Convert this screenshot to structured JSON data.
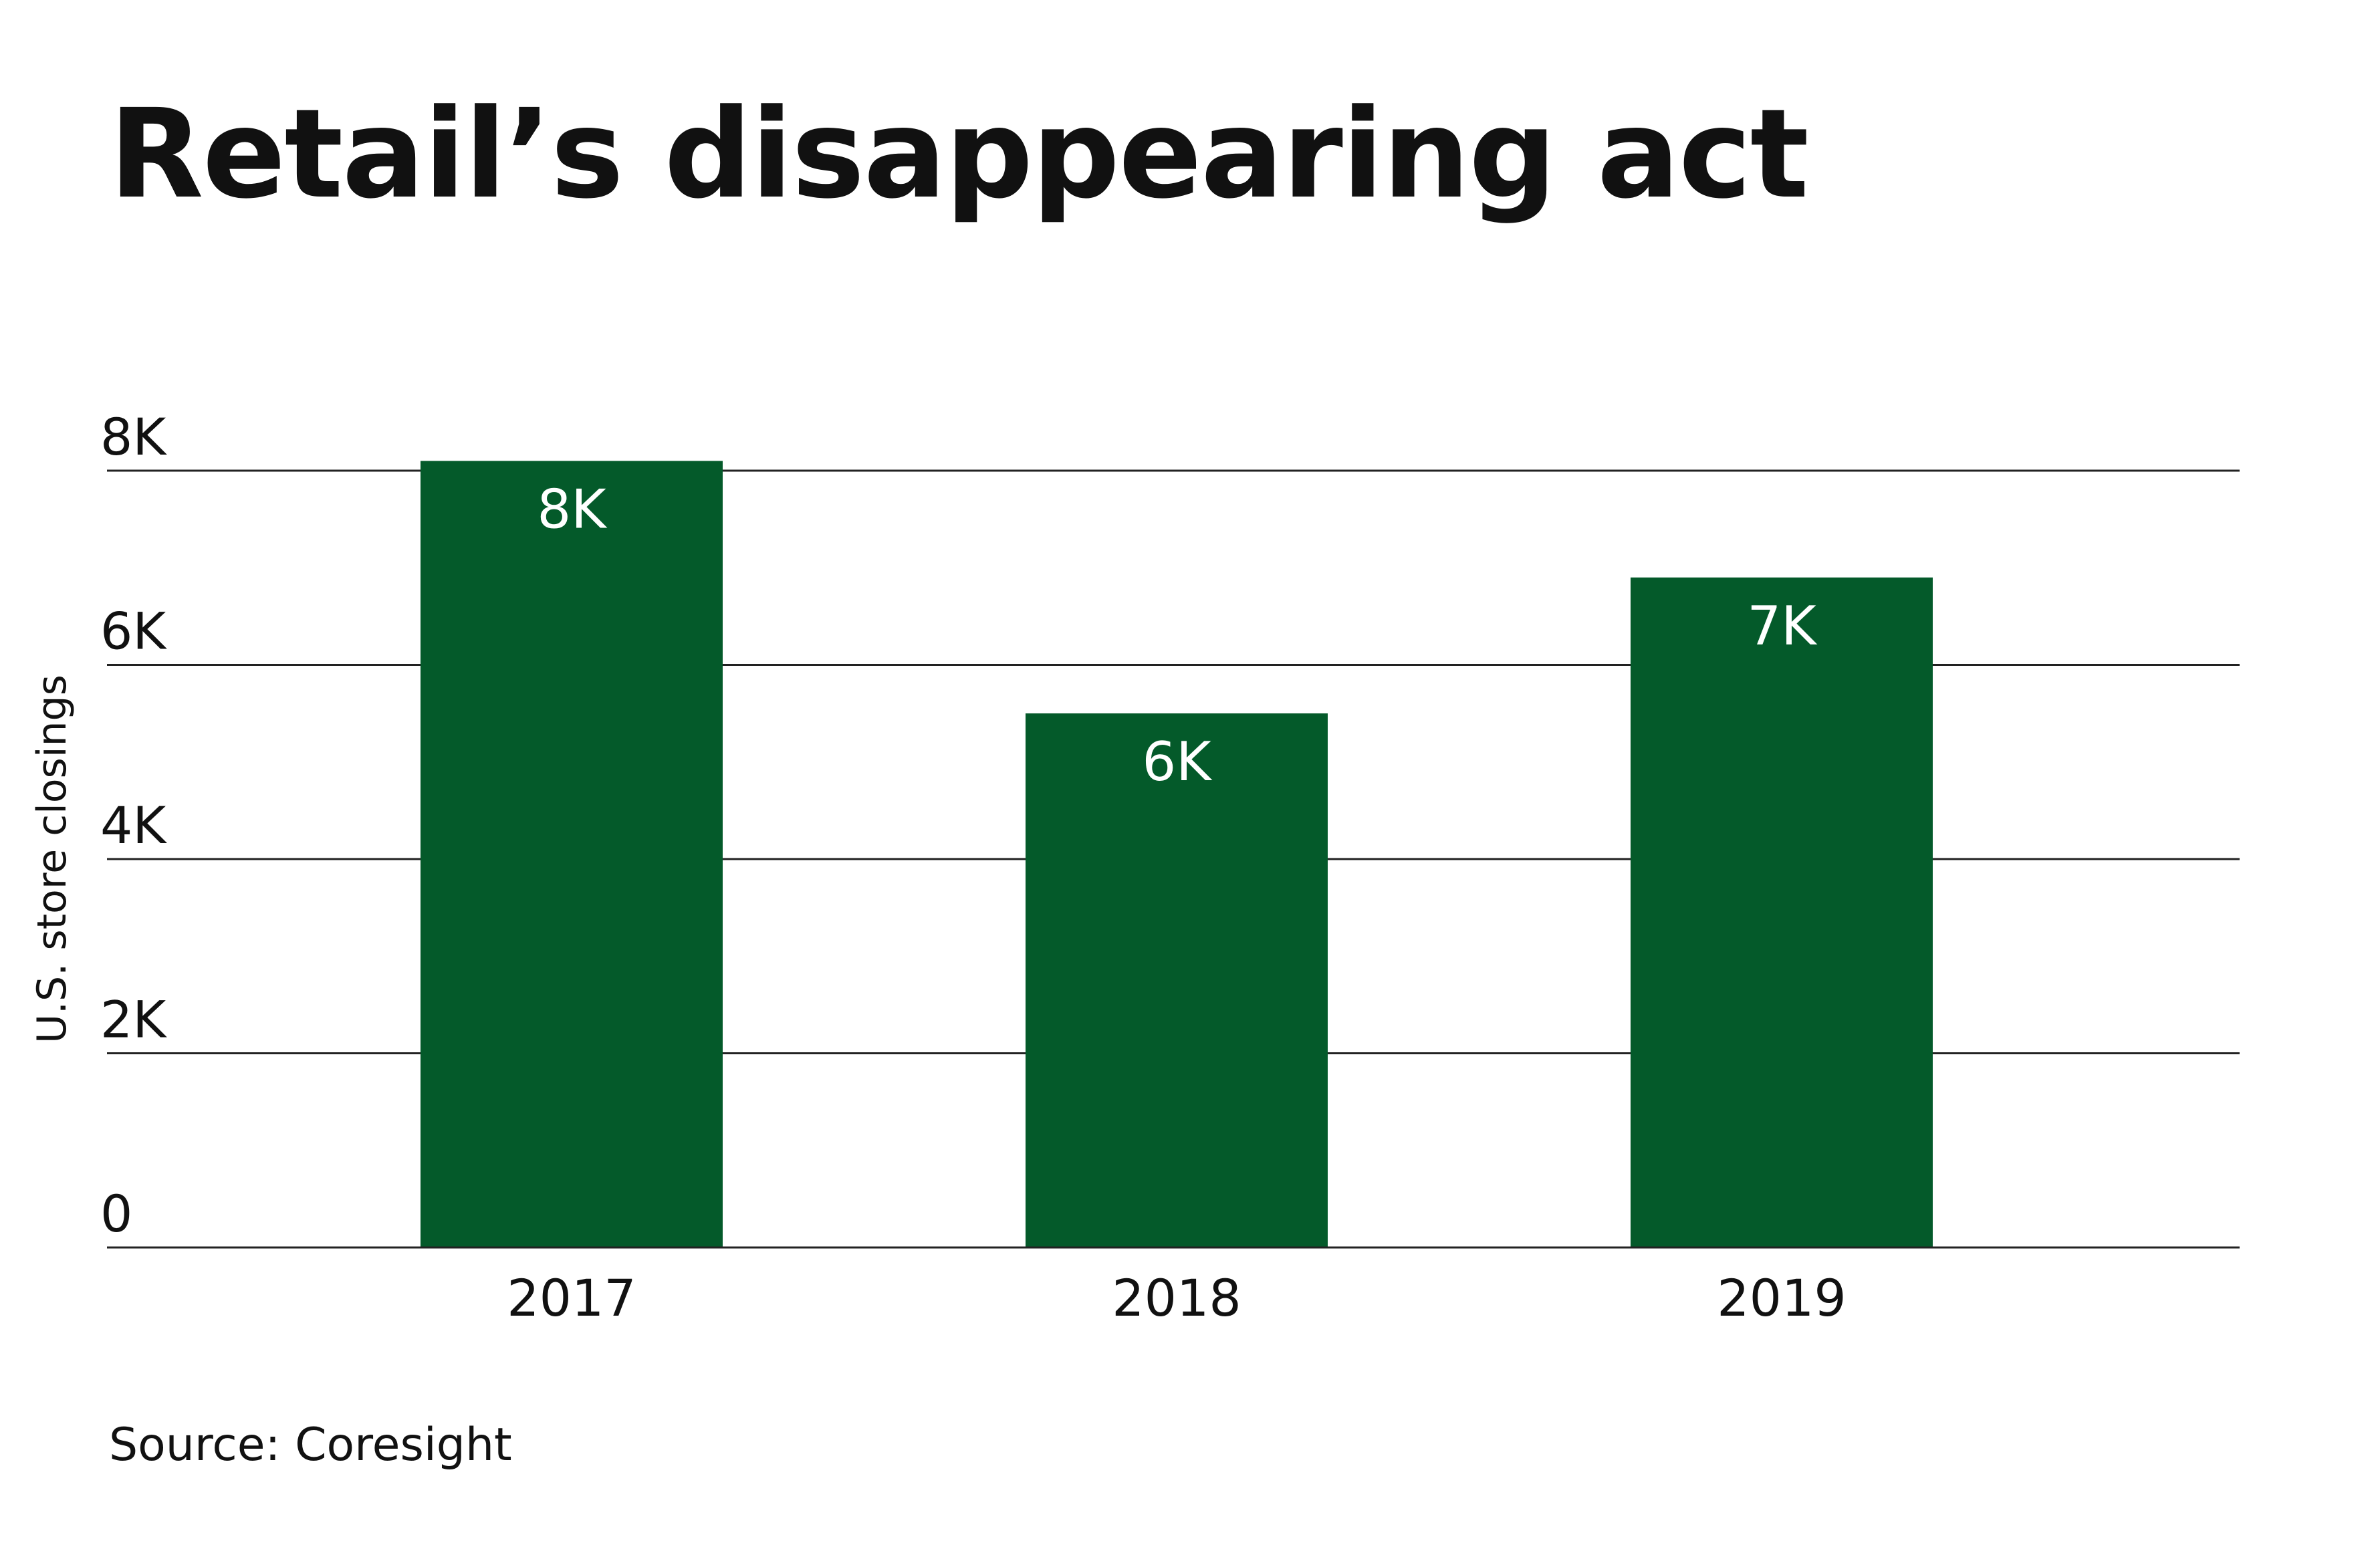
{
  "title": "Retail’s disappearing act",
  "source": "Source: Coresight",
  "colors": {
    "bar": "#045a2a",
    "bar_label": "#ffffff",
    "gridline": "#222222",
    "text": "#111111"
  },
  "chart_data": {
    "type": "bar",
    "title": "Retail’s disappearing act",
    "categories": [
      "2017",
      "2018",
      "2019"
    ],
    "values": [
      8100,
      5500,
      6900
    ],
    "value_labels": [
      "8K",
      "6K",
      "7K"
    ],
    "ylabel": "U.S. store closings",
    "xlabel": "",
    "ylim": [
      0,
      8000
    ],
    "yticks": [
      0,
      2000,
      4000,
      6000,
      8000
    ],
    "ytick_labels": [
      "0",
      "2K",
      "4K",
      "6K",
      "8K"
    ],
    "grid": true
  }
}
